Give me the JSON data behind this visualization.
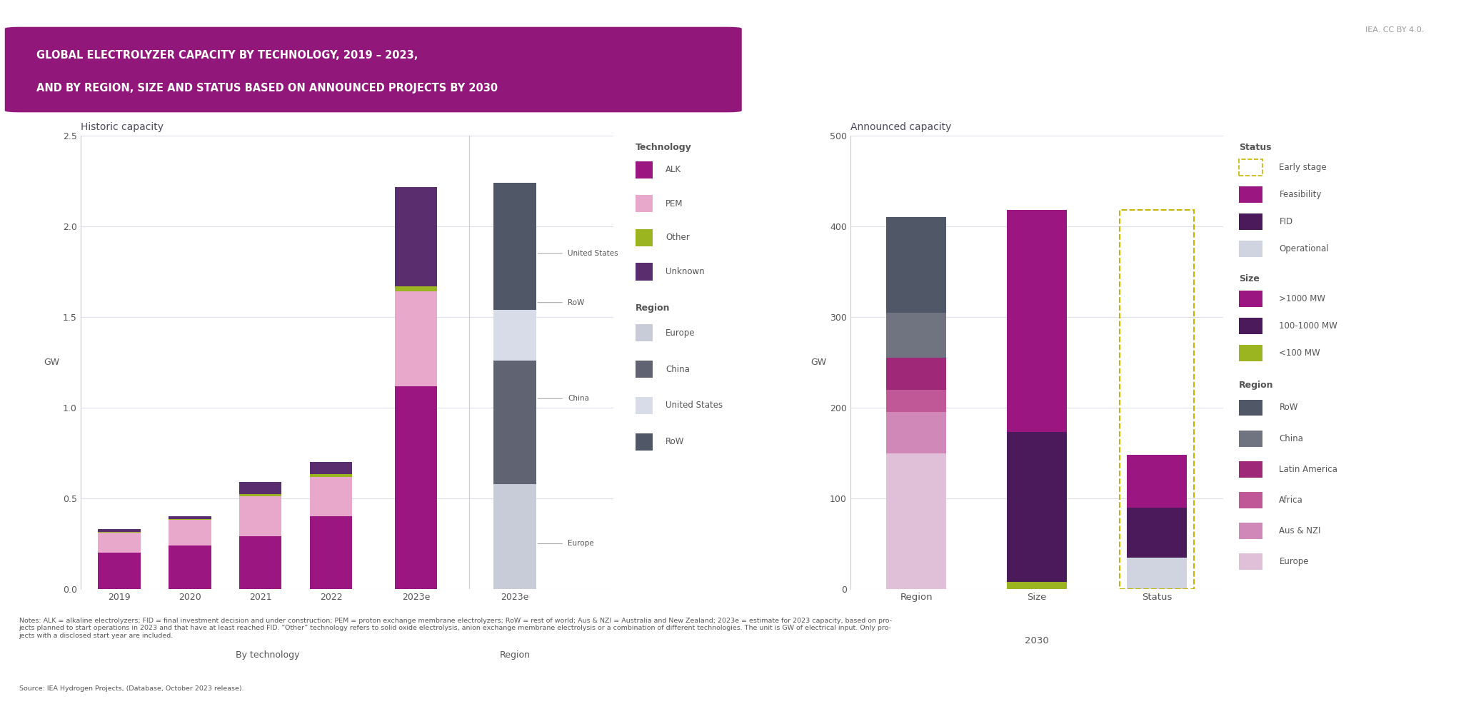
{
  "title_line1": "GLOBAL ELECTROLYZER CAPACITY BY TECHNOLOGY, 2019 – 2023,",
  "title_line2": "AND BY REGION, SIZE AND STATUS BASED ON ANNOUNCED PROJECTS BY 2030",
  "title_bg_color": "#92177a",
  "title_text_color": "#ffffff",
  "watermark": "IEA. CC BY 4.0.",
  "notes": "Notes: ALK = alkaline electrolyzers; FID = final investment decision and under construction; PEM = proton exchange membrane electrolyzers; RoW = rest of world; Aus & NZI = Australia and New Zealand; 2023e = estimate for 2023 capacity, based on pro-\njects planned to start operations in 2023 and that have at least reached FID. “Other” technology refers to solid oxide electrolysis, anion exchange membrane electrolysis or a combination of different technologies. The unit is GW of electrical input. Only pro-\njects with a disclosed start year are included.",
  "source": "Source: IEA Hydrogen Projects, (Database, October 2023 release).",
  "historic_title": "Historic capacity",
  "announced_title": "Announced capacity",
  "hist_ylabel": "GW",
  "ann_ylabel": "GW",
  "colors": {
    "ALK": "#9b1681",
    "PEM": "#e8a8cc",
    "Other": "#9bb520",
    "Unknown": "#5a2d6e",
    "Europe_hist": "#c8ccd8",
    "China_hist": "#606472",
    "United_States_hist": "#d8dce8",
    "RoW_hist": "#505868",
    "Feasibility": "#9b1681",
    "FID": "#4a1a5a",
    "Operational": "#d0d4e0",
    "gt1000MW": "#9b1681",
    "s100_1000MW": "#4a1a5a",
    "lt100MW": "#9bb520",
    "RoW_ann": "#505868",
    "China_ann": "#707480",
    "Latin_America": "#a02878",
    "Africa": "#c05898",
    "Aus_NZI": "#d088b8",
    "Europe_ann": "#e0c0d8",
    "early_stage_border": "#c8b400"
  },
  "hist_tech_data": {
    "2019": {
      "ALK": 0.2,
      "PEM": 0.11,
      "Other": 0.004,
      "Unknown": 0.015
    },
    "2020": {
      "ALK": 0.24,
      "PEM": 0.14,
      "Other": 0.005,
      "Unknown": 0.018
    },
    "2021": {
      "ALK": 0.29,
      "PEM": 0.22,
      "Other": 0.014,
      "Unknown": 0.065
    },
    "2022": {
      "ALK": 0.4,
      "PEM": 0.22,
      "Other": 0.015,
      "Unknown": 0.065
    },
    "2023e_tech": {
      "ALK": 1.12,
      "PEM": 0.52,
      "Other": 0.028,
      "Unknown": 0.55
    }
  },
  "hist_region_data": {
    "Europe": 0.58,
    "China_reg": 0.68,
    "United_States": 0.28,
    "RoW_reg": 0.7
  },
  "ann_region": {
    "RoW": 105,
    "China": 50,
    "Latin_America": 35,
    "Africa": 25,
    "Aus_NZI": 45,
    "Europe": 150
  },
  "ann_size": {
    "lt100MW": 8,
    "s100_1000MW": 165,
    "gt1000MW": 245
  },
  "ann_status_operational": 35,
  "ann_status_fid": 55,
  "ann_status_feasibility": 58,
  "ann_early_stage": 270,
  "ann_region_total": 410,
  "ann_size_total": 418,
  "ann_status_shown": 148
}
